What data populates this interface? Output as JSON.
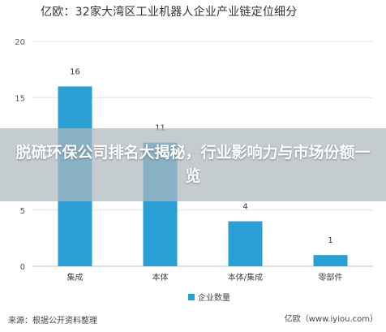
{
  "chart_data": {
    "type": "bar",
    "title": "亿欧：32家大湾区工业机器人企业产业链定位细分",
    "categories": [
      "集成",
      "本体",
      "本体/集成",
      "零部件"
    ],
    "series": [
      {
        "name": "企业数量",
        "values": [
          16,
          11,
          4,
          1
        ],
        "color": "#2a9fd6"
      }
    ],
    "ylim": [
      0,
      20
    ],
    "yticks": [
      0,
      5,
      10,
      15,
      20
    ],
    "grid": true,
    "legend_position": "bottom"
  },
  "footer": {
    "source": "来源：根据公开资料整理",
    "credit": "亿欧（www.iyiou.com）"
  },
  "banner": {
    "text": "脱硫环保公司排名大揭秘，行业影响力与市场份额一览"
  }
}
